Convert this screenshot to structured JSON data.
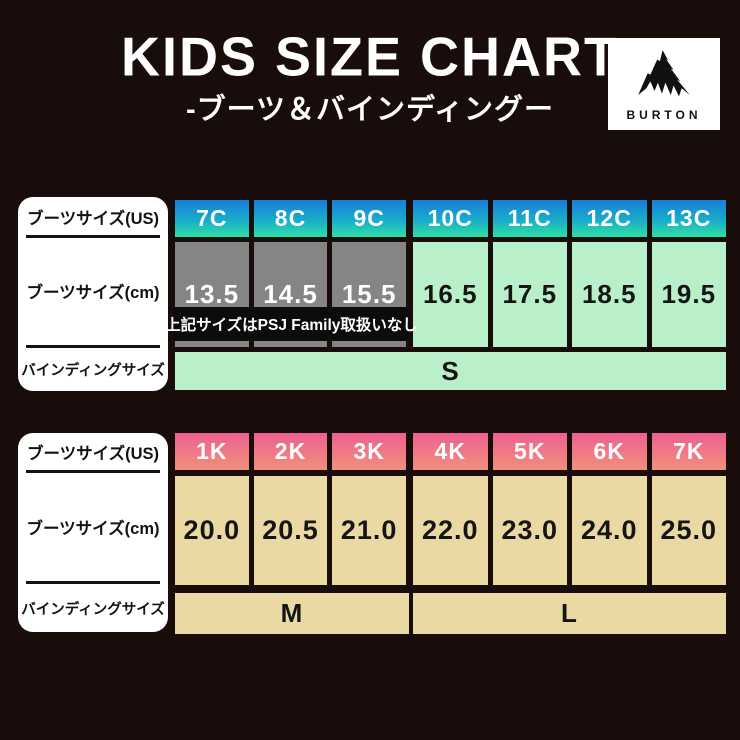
{
  "header": {
    "title": "KIDS SIZE CHART",
    "subtitle": "-ブーツ＆バインディングー",
    "logo": {
      "brand": "BURTON",
      "icon": "mountain-icon"
    }
  },
  "labels": {
    "boot_size_us": "ブーツサイズ(US)",
    "boot_size_cm": "ブーツサイズ(cm)",
    "binding_size": "バインディングサイズ"
  },
  "table1": {
    "us_a": [
      "7C",
      "8C",
      "9C"
    ],
    "us_b": [
      "10C",
      "11C",
      "12C",
      "13C"
    ],
    "cm_a": [
      "13.5",
      "14.5",
      "15.5"
    ],
    "cm_b": [
      "16.5",
      "17.5",
      "18.5",
      "19.5"
    ],
    "note": "上記サイズはPSJ Family取扱いなし",
    "binding": "S"
  },
  "table2": {
    "us_a": [
      "1K",
      "2K",
      "3K"
    ],
    "us_b": [
      "4K",
      "5K",
      "6K",
      "7K"
    ],
    "cm_a": [
      "20.0",
      "20.5",
      "21.0"
    ],
    "cm_b": [
      "22.0",
      "23.0",
      "24.0",
      "25.0"
    ],
    "binding_m": "M",
    "binding_l": "L"
  },
  "colors": {
    "background": "#180d0a",
    "header_blue_top": "#1b7cda",
    "header_blue_bottom": "#2fdfa4",
    "header_pink_top": "#ee5f92",
    "header_pink_bottom": "#f0907b",
    "gray_cell": "#858585",
    "green_cell": "#b9f0c9",
    "tan_cell": "#ead9a2",
    "panel_white": "#ffffff",
    "note_black": "#0c0c0c"
  },
  "chart_data": [
    {
      "type": "table",
      "title": "KIDS SIZE CHART -ブーツ＆バインディングー (Burton)",
      "rows": [
        {
          "label": "ブーツサイズ(US)",
          "values": [
            "7C",
            "8C",
            "9C",
            "10C",
            "11C",
            "12C",
            "13C"
          ]
        },
        {
          "label": "ブーツサイズ(cm)",
          "values": [
            "13.5",
            "14.5",
            "15.5",
            "16.5",
            "17.5",
            "18.5",
            "19.5"
          ]
        },
        {
          "label": "バインディングサイズ",
          "values": [
            {
              "value": "S",
              "span_columns": [
                "7C",
                "13C"
              ]
            }
          ]
        }
      ],
      "annotations": [
        "上記サイズはPSJ Family取扱いなし"
      ],
      "note_applies_to": [
        "13.5",
        "14.5",
        "15.5"
      ]
    },
    {
      "type": "table",
      "rows": [
        {
          "label": "ブーツサイズ(US)",
          "values": [
            "1K",
            "2K",
            "3K",
            "4K",
            "5K",
            "6K",
            "7K"
          ]
        },
        {
          "label": "ブーツサイズ(cm)",
          "values": [
            "20.0",
            "20.5",
            "21.0",
            "22.0",
            "23.0",
            "24.0",
            "25.0"
          ]
        },
        {
          "label": "バインディングサイズ",
          "values": [
            {
              "value": "M",
              "span_columns": [
                "1K",
                "3K"
              ]
            },
            {
              "value": "L",
              "span_columns": [
                "4K",
                "7K"
              ]
            }
          ]
        }
      ]
    }
  ]
}
